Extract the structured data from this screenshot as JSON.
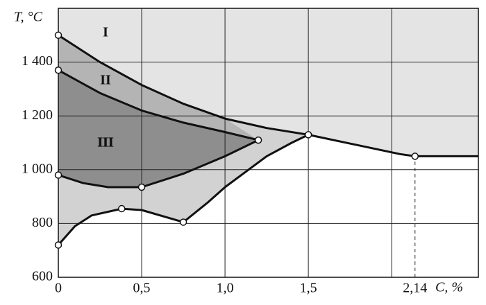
{
  "chart_data": {
    "type": "line",
    "x_label": "C, %",
    "y_label": "T, °C",
    "annotations": [
      "I",
      "II",
      "III"
    ],
    "xlim": [
      0,
      2.52
    ],
    "ylim": [
      600,
      1600
    ],
    "xticks": [
      0,
      {
        "value": 0.5,
        "label": "0,5"
      },
      {
        "value": 1,
        "label": "1,0"
      },
      {
        "value": 1.5,
        "label": "1,5"
      },
      {
        "value": 2,
        "label": null
      },
      {
        "value": 2.14,
        "label": "2,14"
      }
    ],
    "yticks": [
      600,
      800,
      {
        "value": 1000,
        "label": "1 000"
      },
      {
        "value": 1200,
        "label": "1 200"
      },
      {
        "value": 1400,
        "label": "1 400"
      }
    ],
    "grid": true,
    "series": [
      {
        "color": "#111111",
        "x": [
          0,
          0.25,
          0.5,
          0.75,
          1.0,
          1.25,
          1.5,
          2.05,
          2.14,
          2.52
        ],
        "values": [
          1500,
          1400,
          1315,
          1245,
          1190,
          1155,
          1130,
          1058,
          1050,
          1050
        ]
      },
      {
        "color": "#111111",
        "x": [
          0,
          0.25,
          0.5,
          0.75,
          1.0,
          1.2
        ],
        "values": [
          1370,
          1285,
          1220,
          1175,
          1140,
          1110
        ]
      },
      {
        "color": "#111111",
        "x": [
          0,
          0.15,
          0.3,
          0.5,
          0.75,
          1.0,
          1.2
        ],
        "values": [
          980,
          950,
          935,
          935,
          985,
          1050,
          1110
        ]
      },
      {
        "color": "#111111",
        "x": [
          0,
          0.1,
          0.2,
          0.38,
          0.5,
          0.75,
          0.9,
          1.0,
          1.25,
          1.4,
          1.5
        ],
        "values": [
          720,
          790,
          830,
          855,
          850,
          805,
          880,
          935,
          1050,
          1100,
          1130
        ]
      }
    ],
    "points": {
      "x": [
        0,
        0,
        0,
        0,
        0.38,
        0.5,
        0.75,
        1.2,
        1.5,
        2.14
      ],
      "values": [
        1500,
        1370,
        980,
        720,
        855,
        935,
        805,
        1110,
        1130,
        1050
      ]
    }
  }
}
